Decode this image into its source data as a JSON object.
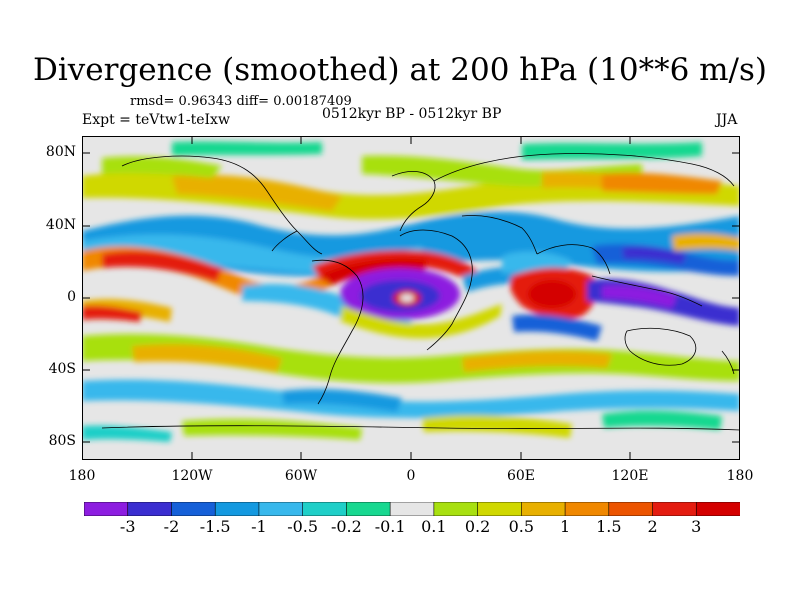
{
  "title": "Divergence (smoothed) at 200 hPa (10**6 m/s)",
  "stats": "rmsd= 0.96343 diff= 0.00187409",
  "experiment": "Expt = teVtw1-teIxw",
  "period": "0512kyr BP - 0512kyr BP",
  "season": "JJA",
  "lat_labels": [
    "80N",
    "40N",
    "0",
    "40S",
    "80S"
  ],
  "lon_labels": [
    "180",
    "120W",
    "60W",
    "0",
    "60E",
    "120E",
    "180"
  ],
  "colorbar": {
    "levels": [
      "-3",
      "-2",
      "-1.5",
      "-1",
      "-0.5",
      "-0.2",
      "-0.1",
      "0.1",
      "0.2",
      "0.5",
      "1",
      "1.5",
      "2",
      "3"
    ],
    "colors": [
      "#8d1de0",
      "#3b2ed0",
      "#1660d8",
      "#1499e0",
      "#38b8ec",
      "#1fcfc8",
      "#18d890",
      "#e6e6e6",
      "#a8e010",
      "#d0d800",
      "#e8b000",
      "#f08800",
      "#ec5400",
      "#e41c10",
      "#d40000"
    ]
  }
}
